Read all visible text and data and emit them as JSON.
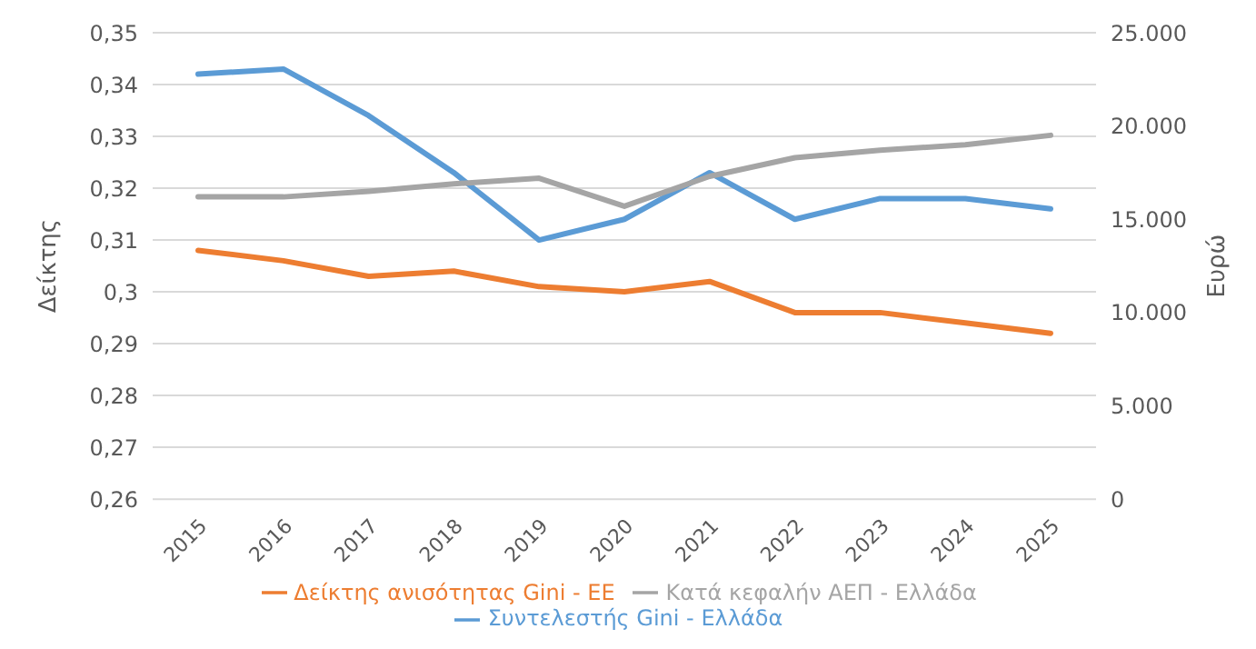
{
  "chart_data": {
    "type": "line",
    "categories": [
      "2015",
      "2016",
      "2017",
      "2018",
      "2019",
      "2020",
      "2021",
      "2022",
      "2023",
      "2024",
      "2025"
    ],
    "ylabel": "Δείκτης",
    "y2label": "Ευρώ",
    "series": [
      {
        "name": "Συντελεστής Gini - Ελλάδα",
        "color": "#5b9bd5",
        "values": [
          0.342,
          0.343,
          0.334,
          0.323,
          0.31,
          0.314,
          0.323,
          0.314,
          0.318,
          0.318,
          0.316
        ]
      },
      {
        "name": "Δείκτης ανισότητας Gini - ΕΕ",
        "color": "#ed7d31",
        "values": [
          0.308,
          0.306,
          0.303,
          0.304,
          0.301,
          0.3,
          0.302,
          0.296,
          0.296,
          0.294,
          0.292
        ]
      },
      {
        "name": "Κατά κεφαλήν ΑΕΠ - Ελλάδα",
        "color": "#a5a5a5",
        "axis": "y2",
        "values": [
          16200,
          16200,
          16500,
          16900,
          17200,
          15700,
          17300,
          18300,
          18700,
          19000,
          19500
        ]
      }
    ],
    "ylim": [
      0.26,
      0.35
    ],
    "yticks": [
      {
        "value": 0.26,
        "label": "0,26"
      },
      {
        "value": 0.27,
        "label": "0,27"
      },
      {
        "value": 0.28,
        "label": "0,28"
      },
      {
        "value": 0.29,
        "label": "0,29"
      },
      {
        "value": 0.3,
        "label": "0,3"
      },
      {
        "value": 0.31,
        "label": "0,31"
      },
      {
        "value": 0.32,
        "label": "0,32"
      },
      {
        "value": 0.33,
        "label": "0,33"
      },
      {
        "value": 0.34,
        "label": "0,34"
      },
      {
        "value": 0.35,
        "label": "0,35"
      }
    ],
    "y2lim": [
      0,
      25000
    ],
    "y2ticks": [
      0,
      {
        "value": 5000,
        "label": "5.000"
      },
      {
        "value": 10000,
        "label": "10.000"
      },
      {
        "value": 15000,
        "label": "15.000"
      },
      {
        "value": 20000,
        "label": "20.000"
      },
      {
        "value": 25000,
        "label": "25.000"
      }
    ],
    "grid": "y",
    "legend": "bottom",
    "marker": "none",
    "line_style": "solid"
  }
}
